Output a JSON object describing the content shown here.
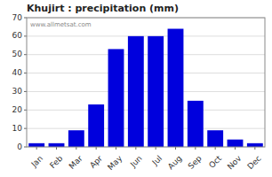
{
  "chart_data": {
    "type": "bar",
    "title": "Khujirt : precipitation (mm)",
    "categories": [
      "Jan",
      "Feb",
      "Mar",
      "Apr",
      "May",
      "Jun",
      "Jul",
      "Aug",
      "Sep",
      "Oct",
      "Nov",
      "Dec"
    ],
    "values": [
      2,
      2,
      9,
      23,
      53,
      60,
      60,
      64,
      25,
      9,
      4,
      2
    ],
    "color": "#0000DD",
    "ylim": [
      0,
      70
    ],
    "yticks": [
      0,
      10,
      20,
      30,
      40,
      50,
      60,
      70
    ],
    "grid": true,
    "annotations": [
      "www.allmetsat.com"
    ]
  }
}
